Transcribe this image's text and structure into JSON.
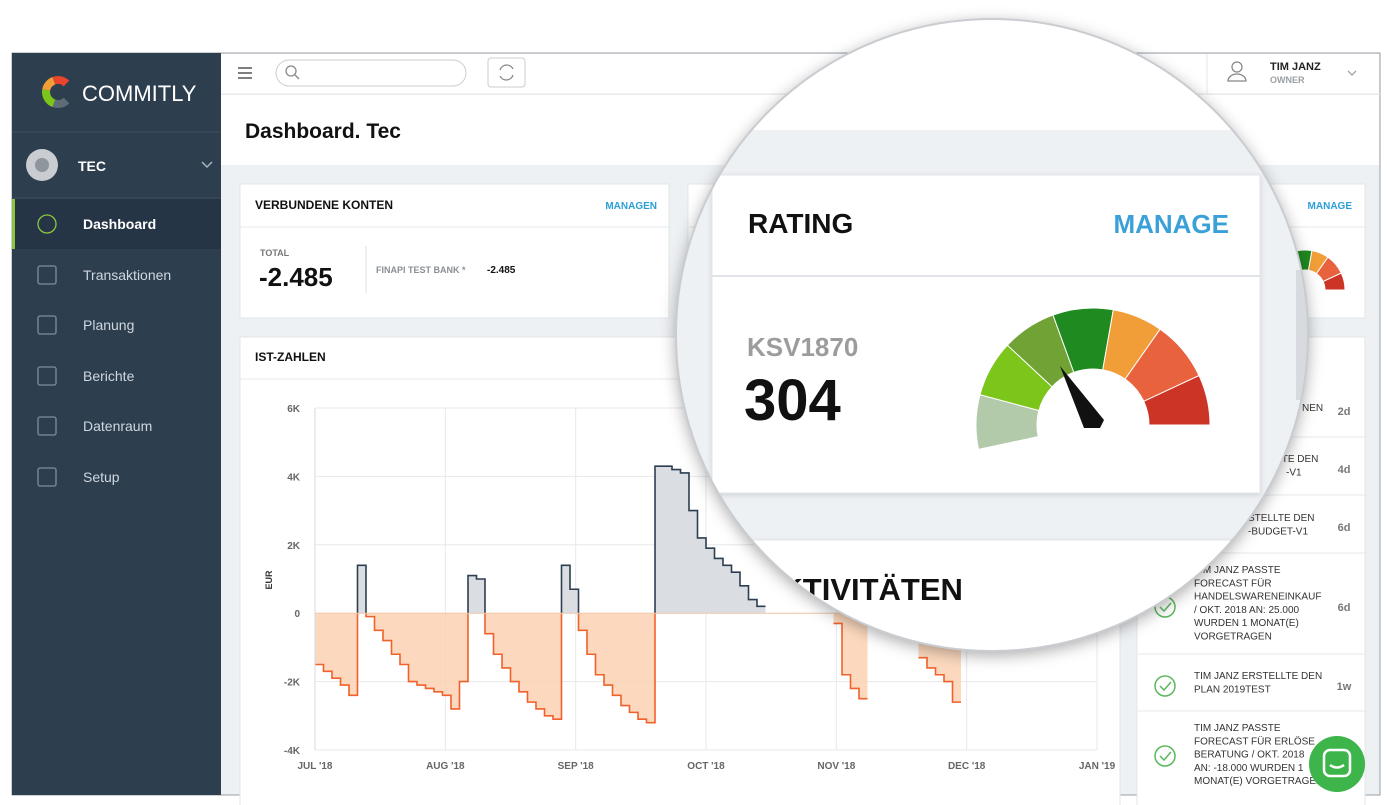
{
  "sidebar": {
    "brand": "COMMITLY",
    "company": "TEC",
    "nav": [
      "Dashboard",
      "Transaktionen",
      "Planung",
      "Berichte",
      "Datenraum",
      "Setup"
    ]
  },
  "topbar": {
    "user_name": "TIM JANZ",
    "user_role": "OWNER"
  },
  "page_title": "Dashboard. Tec",
  "accounts_card": {
    "title": "VERBUNDENE KONTEN",
    "action": "MANAGEN",
    "total_label": "TOTAL",
    "total": "-2.485",
    "bank": "FINAPI TEST BANK *",
    "bank_balance": "-2.485"
  },
  "rating_card": {
    "title": "RATING",
    "action": "MANAGE",
    "agency": "KSV1870",
    "score": "304"
  },
  "activities": {
    "title": "AKTIVITÄTEN",
    "items": [
      {
        "lines": [
          "NEN"
        ],
        "time": "2d"
      },
      {
        "lines": [
          "ERTE DEN",
          "-V1"
        ],
        "time": "4d"
      },
      {
        "lines": [
          "STELLTE DEN",
          "-BUDGET-V1"
        ],
        "time": "6d"
      },
      {
        "lines": [
          "TIM JANZ PASSTE",
          "FORECAST FÜR",
          "HANDELSWARENEINKAUF",
          "/ OKT. 2018 AN: 25.000",
          "WURDEN 1 MONAT(E)",
          "VORGETRAGEN"
        ],
        "time": "6d"
      },
      {
        "lines": [
          "TIM JANZ ERSTELLTE DEN",
          "PLAN 2019TEST"
        ],
        "time": "1w"
      },
      {
        "lines": [
          "TIM JANZ PASSTE",
          "FORECAST FÜR ERLÖSE",
          "BERATUNG / OKT. 2018",
          "AN: -18.000 WURDEN 1",
          "MONAT(E) VORGETRAGEN"
        ]
      }
    ]
  },
  "chart_data": {
    "type": "step-area",
    "title": "IST-ZAHLEN",
    "ylabel": "EUR",
    "xticks": [
      "JUL '18",
      "AUG '18",
      "SEP '18",
      "OCT '18",
      "NOV '18",
      "DEC '18",
      "JAN '19"
    ],
    "ylim": [
      -4000,
      6000
    ],
    "yticks": [
      {
        "value": -4000,
        "label": "-4K"
      },
      {
        "value": -2000,
        "label": "-2K"
      },
      0,
      {
        "value": 2000,
        "label": "2K"
      },
      {
        "value": 4000,
        "label": "4K"
      },
      {
        "value": 6000,
        "label": "6K"
      }
    ],
    "grid": true,
    "color_above": "#2c3e50",
    "color_below": "#f0612b",
    "fill_above": "#dadee3",
    "fill_below": "#fbcfae",
    "values": [
      -1500,
      -1700,
      -1900,
      -2100,
      -2400,
      1400,
      -100,
      -500,
      -800,
      -1200,
      -1500,
      -2000,
      -2100,
      -2200,
      -2300,
      -2400,
      -2800,
      -2000,
      1100,
      1000,
      -600,
      -1200,
      -1600,
      -2000,
      -2300,
      -2600,
      -2800,
      -3000,
      -3100,
      1400,
      700,
      -500,
      -1200,
      -1800,
      -2100,
      -2400,
      -2700,
      -2900,
      -3100,
      -3200,
      4300,
      4300,
      4200,
      4100,
      3000,
      2200,
      1900,
      1600,
      1400,
      1200,
      800,
      400,
      200,
      null,
      null,
      null,
      null,
      null,
      null,
      null,
      null,
      -300,
      -1800,
      -2200,
      -2500,
      null,
      null,
      null,
      null,
      null,
      null,
      -1300,
      -1600,
      -1800,
      -2000,
      -2600,
      null,
      null,
      null,
      null,
      null,
      null,
      null,
      null,
      null,
      null,
      null,
      null,
      null,
      null,
      null,
      null,
      null
    ]
  }
}
